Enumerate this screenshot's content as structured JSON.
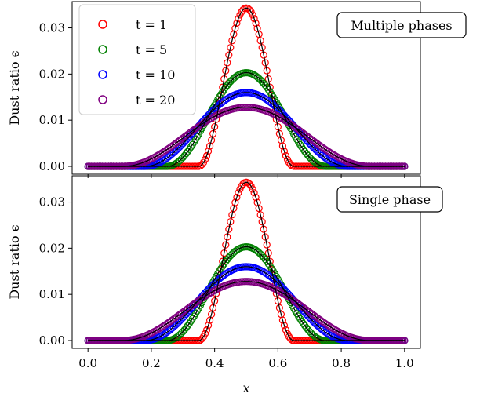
{
  "chart_data": {
    "type": "scatter",
    "shared_x_axis": true,
    "xlabel": "x",
    "xlim": [
      -0.05,
      1.05
    ],
    "xticks": [
      "0.0",
      "0.2",
      "0.4",
      "0.6",
      "0.8",
      "1.0"
    ],
    "legend": {
      "placement": "top-left",
      "entries": [
        "t = 1",
        "t = 5",
        "t = 10",
        "t = 20"
      ]
    },
    "series_style": [
      {
        "label": "t = 1",
        "color": "#ff0000",
        "marker": "open-circle"
      },
      {
        "label": "t = 5",
        "color": "#008000",
        "marker": "open-circle"
      },
      {
        "label": "t = 10",
        "color": "#0000ff",
        "marker": "open-circle"
      },
      {
        "label": "t = 20",
        "color": "#800080",
        "marker": "open-circle"
      }
    ],
    "reference_line_color": "#000000",
    "panels": [
      {
        "annotation": "Multiple phases",
        "ylabel": "Dust ratio ϵ",
        "ylim": [
          -0.0017,
          0.0357
        ],
        "yticks": [
          "0.00",
          "0.01",
          "0.02",
          "0.03"
        ],
        "series": [
          {
            "name": "t = 1",
            "center": 0.5,
            "halfwidth": 0.15,
            "peak": 0.0343
          },
          {
            "name": "t = 5",
            "center": 0.5,
            "halfwidth": 0.25,
            "peak": 0.0203
          },
          {
            "name": "t = 10",
            "center": 0.5,
            "halfwidth": 0.32,
            "peak": 0.016
          },
          {
            "name": "t = 20",
            "center": 0.5,
            "halfwidth": 0.39,
            "peak": 0.0128
          }
        ]
      },
      {
        "annotation": "Single phase",
        "ylabel": "Dust ratio ϵ",
        "ylim": [
          -0.0017,
          0.0357
        ],
        "yticks": [
          "0.00",
          "0.01",
          "0.02",
          "0.03"
        ],
        "series": [
          {
            "name": "t = 1",
            "center": 0.5,
            "halfwidth": 0.15,
            "peak": 0.0343
          },
          {
            "name": "t = 5",
            "center": 0.5,
            "halfwidth": 0.25,
            "peak": 0.0203
          },
          {
            "name": "t = 10",
            "center": 0.5,
            "halfwidth": 0.32,
            "peak": 0.016
          },
          {
            "name": "t = 20",
            "center": 0.5,
            "halfwidth": 0.39,
            "peak": 0.0128
          }
        ]
      }
    ]
  }
}
